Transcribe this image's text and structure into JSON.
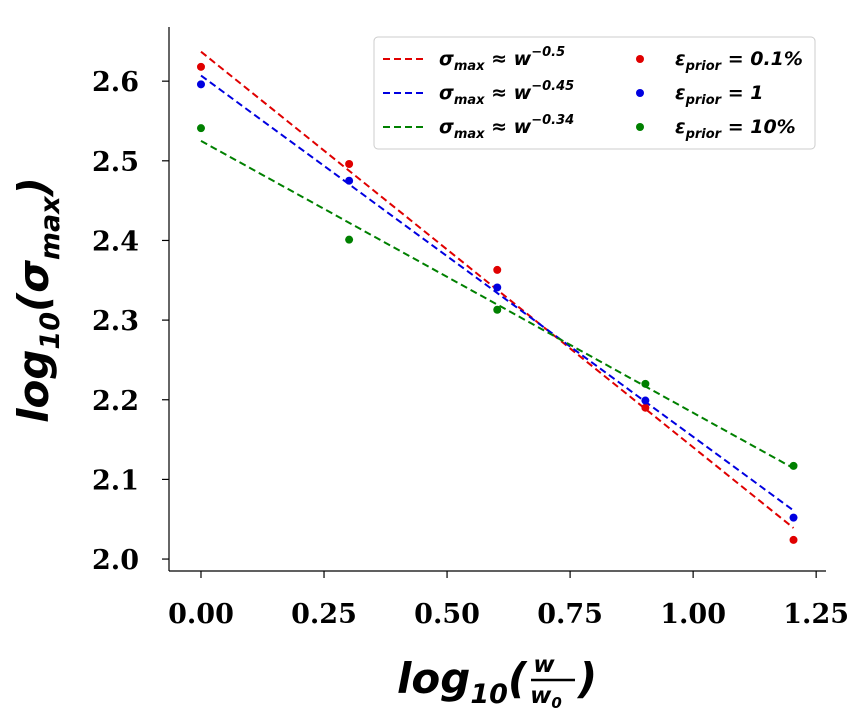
{
  "chart_data": {
    "type": "scatter",
    "title": "",
    "xlabel": "log10(w / w0)",
    "ylabel": "log10(σmax)",
    "xlim": [
      -0.065,
      1.27
    ],
    "ylim": [
      1.985,
      2.668
    ],
    "x_ticks": [
      {
        "value": 0.0,
        "label": "0.00"
      },
      {
        "value": 0.25,
        "label": "0.25"
      },
      {
        "value": 0.5,
        "label": "0.50"
      },
      {
        "value": 0.75,
        "label": "0.75"
      },
      {
        "value": 1.0,
        "label": "1.00"
      },
      {
        "value": 1.25,
        "label": "1.25"
      }
    ],
    "y_ticks": [
      {
        "value": 2.0,
        "label": "2.0"
      },
      {
        "value": 2.1,
        "label": "2.1"
      },
      {
        "value": 2.2,
        "label": "2.2"
      },
      {
        "value": 2.3,
        "label": "2.3"
      },
      {
        "value": 2.4,
        "label": "2.4"
      },
      {
        "value": 2.5,
        "label": "2.5"
      },
      {
        "value": 2.6,
        "label": "2.6"
      }
    ],
    "x": [
      0.0,
      0.301,
      0.602,
      0.903,
      1.204
    ],
    "series": [
      {
        "name": "ε_prior = 0.1%",
        "color": "#e00000",
        "values": [
          2.618,
          2.496,
          2.363,
          2.19,
          2.024
        ]
      },
      {
        "name": "ε_prior = 1",
        "color": "#0000e0",
        "values": [
          2.596,
          2.475,
          2.341,
          2.199,
          2.052
        ]
      },
      {
        "name": "ε_prior = 10%",
        "color": "#008000",
        "values": [
          2.541,
          2.401,
          2.313,
          2.22,
          2.117
        ]
      }
    ],
    "fits": [
      {
        "name": "σmax ≈ w^-0.5",
        "exponent_label": "−0.5",
        "color": "#e00000",
        "x_range": [
          0.0,
          1.204
        ],
        "y_range": [
          2.637,
          2.039
        ]
      },
      {
        "name": "σmax ≈ w^-0.45",
        "exponent_label": "−0.45",
        "color": "#0000e0",
        "x_range": [
          0.0,
          1.204
        ],
        "y_range": [
          2.607,
          2.061
        ]
      },
      {
        "name": "σmax ≈ w^-0.34",
        "exponent_label": "−0.34",
        "color": "#008000",
        "x_range": [
          0.0,
          1.204
        ],
        "y_range": [
          2.525,
          2.114
        ]
      }
    ],
    "legend_position": "top-right",
    "legend": {
      "fit_prefix": "σ",
      "fit_sub": "max",
      "fit_approx": " ≈ w",
      "eps_symbol": "ε",
      "eps_sub": "prior",
      "eps_values": [
        " = 0.1%",
        " = 1",
        " = 10%"
      ]
    },
    "axis_text": {
      "log": "log",
      "ten": "10",
      "paren_open": "(",
      "paren_close": ")",
      "sigma": "σ",
      "max": "max",
      "w": "w",
      "w0": "w",
      "zero": "0"
    }
  }
}
